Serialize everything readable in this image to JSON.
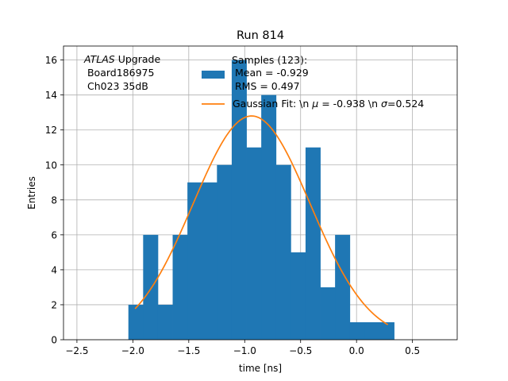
{
  "chart_data": {
    "type": "bar",
    "title": "Run 814",
    "xlabel": "time [ns]",
    "ylabel": "Entries",
    "xlim": [
      -2.62,
      0.9
    ],
    "ylim": [
      0,
      16.8
    ],
    "grid": true,
    "xticks": [
      -2.5,
      -2.0,
      -1.5,
      -1.0,
      -0.5,
      0.0,
      0.5
    ],
    "xtick_labels": [
      "−2.5",
      "−2.0",
      "−1.5",
      "−1.0",
      "−0.5",
      "0.0",
      "0.5"
    ],
    "yticks": [
      0,
      2,
      4,
      6,
      8,
      10,
      12,
      14,
      16
    ],
    "ytick_labels": [
      "0",
      "2",
      "4",
      "6",
      "8",
      "10",
      "12",
      "14",
      "16"
    ],
    "histogram": {
      "bin_edges": [
        -2.04,
        -1.908,
        -1.776,
        -1.644,
        -1.512,
        -1.38,
        -1.248,
        -1.116,
        -0.984,
        -0.852,
        -0.72,
        -0.588,
        -0.456,
        -0.324,
        -0.192,
        -0.06,
        0.072,
        0.204,
        0.336
      ],
      "counts": [
        2,
        6,
        2,
        6,
        9,
        9,
        10,
        16,
        11,
        14,
        10,
        5,
        11,
        3,
        6,
        1,
        1,
        1
      ],
      "color": "#1f77b4",
      "label": "Samples (123):\n Mean = -0.929\n RMS = 0.497"
    },
    "fit": {
      "name": "Gaussian Fit: \\n $\\mu$ = -0.938 \\n $\\sigma$=0.524",
      "amplitude": 12.8,
      "mu": -0.938,
      "sigma": 0.524,
      "x_range": [
        -1.98,
        0.28
      ],
      "color": "#ff7f0e"
    },
    "annotation": {
      "italic": "ATLAS",
      "rest": " Upgrade",
      "line2": " Board186975",
      "line3": " Ch023 35dB"
    },
    "legend": {
      "placement": "upper center",
      "hist_lines": [
        "Samples (123):",
        " Mean = -0.929",
        " RMS = 0.497"
      ],
      "fit_prefix": "Gaussian Fit: \\n ",
      "fit_mu_symbol": "μ",
      "fit_mid": " = -0.938 \\n ",
      "fit_sigma_symbol": "σ",
      "fit_suffix": "=0.524"
    }
  }
}
